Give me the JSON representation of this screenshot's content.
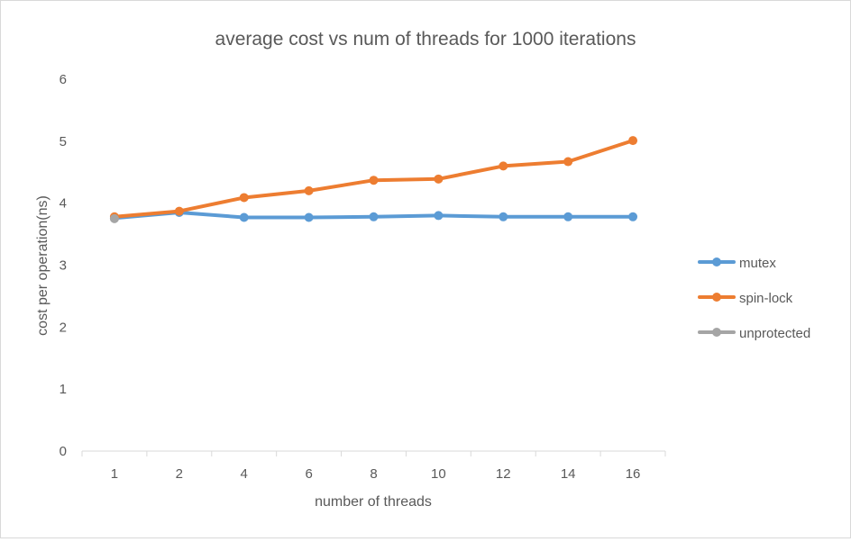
{
  "chart_data": {
    "type": "line",
    "title": "average cost vs num of threads for 1000 iterations",
    "xlabel": "number of threads",
    "ylabel": "cost per operation(ns)",
    "categories": [
      "1",
      "2",
      "4",
      "6",
      "8",
      "10",
      "12",
      "14",
      "16"
    ],
    "ylim": [
      0,
      6
    ],
    "yticks": [
      0,
      1,
      2,
      3,
      4,
      5,
      6
    ],
    "grid": false,
    "legend_position": "right",
    "series": [
      {
        "name": "mutex",
        "color": "#5b9bd5",
        "values": [
          3.76,
          3.85,
          3.77,
          3.77,
          3.78,
          3.8,
          3.78,
          3.78,
          3.78
        ]
      },
      {
        "name": "spin-lock",
        "color": "#ed7d31",
        "values": [
          3.78,
          3.87,
          4.09,
          4.2,
          4.37,
          4.39,
          4.6,
          4.67,
          5.01
        ]
      },
      {
        "name": "unprotected",
        "color": "#a5a5a5",
        "values": [
          3.75,
          null,
          null,
          null,
          null,
          null,
          null,
          null,
          null
        ]
      }
    ]
  }
}
